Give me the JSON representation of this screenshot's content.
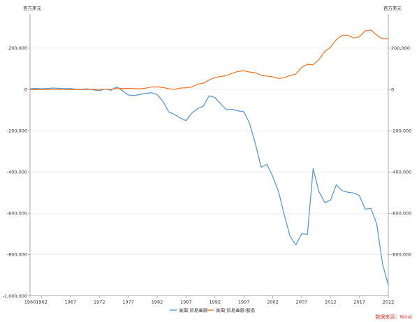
{
  "chart_data": {
    "type": "line",
    "unit_left": "百万美元",
    "unit_right": "百万美元",
    "source": "数据来源：Wind",
    "source_color": "#e8382e",
    "ylim": [
      -1000000,
      330000
    ],
    "y_ticks": [
      "-1,000,000",
      "-800,000",
      "-600,000",
      "-400,000",
      "-200,000",
      "0",
      "200,000"
    ],
    "y_tick_values": [
      -1000000,
      -800000,
      -600000,
      -400000,
      -200000,
      0,
      200000
    ],
    "y_ticks_right": [
      "-800,000",
      "-600,000",
      "-400,000",
      "-200,000",
      "0",
      "200,000"
    ],
    "y_tick_values_right": [
      -800000,
      -600000,
      -400000,
      -200000,
      0,
      200000
    ],
    "xlim": [
      1960,
      2022
    ],
    "x_ticks": [
      "1960",
      "1962",
      "1967",
      "1972",
      "1977",
      "1982",
      "1987",
      "1992",
      "1997",
      "2002",
      "2007",
      "2012",
      "2017",
      "2022"
    ],
    "x_tick_values": [
      1960,
      1962,
      1967,
      1972,
      1977,
      1982,
      1987,
      1992,
      1997,
      2002,
      2007,
      2012,
      2017,
      2022
    ],
    "legend_position": "bottom-center",
    "grid": true,
    "x": [
      1960,
      1961,
      1962,
      1963,
      1964,
      1965,
      1966,
      1967,
      1968,
      1969,
      1970,
      1971,
      1972,
      1973,
      1974,
      1975,
      1976,
      1977,
      1978,
      1979,
      1980,
      1981,
      1982,
      1983,
      1984,
      1985,
      1986,
      1987,
      1988,
      1989,
      1990,
      1991,
      1992,
      1993,
      1994,
      1995,
      1996,
      1997,
      1998,
      1999,
      2000,
      2001,
      2002,
      2003,
      2004,
      2005,
      2006,
      2007,
      2008,
      2009,
      2010,
      2011,
      2012,
      2013,
      2014,
      2015,
      2016,
      2017,
      2018,
      2019,
      2020,
      2021,
      2022
    ],
    "series": [
      {
        "name": "美国:贸易差额",
        "color": "#5b9bd5",
        "values": [
          3500,
          4500,
          3000,
          4500,
          6800,
          5000,
          3800,
          4000,
          600,
          1300,
          2600,
          -2300,
          -6400,
          1900,
          -4300,
          12400,
          -6100,
          -27200,
          -29800,
          -24600,
          -19400,
          -16200,
          -24200,
          -57800,
          -109100,
          -121900,
          -138500,
          -151700,
          -114600,
          -93100,
          -80900,
          -31100,
          -39200,
          -70500,
          -98500,
          -96400,
          -104100,
          -108300,
          -164900,
          -263200,
          -377600,
          -362800,
          -421200,
          -494900,
          -607700,
          -711600,
          -753300,
          -699100,
          -702300,
          -383800,
          -494700,
          -548600,
          -536800,
          -461900,
          -490300,
          -498500,
          -502000,
          -513800,
          -579900,
          -576300,
          -653000,
          -845000,
          -948000
        ]
      },
      {
        "name": "美国:贸易差额:服务",
        "color": "#ed7d31",
        "values": [
          -1000,
          -800,
          -700,
          -200,
          -400,
          300,
          -200,
          -1000,
          -500,
          -900,
          -300,
          1000,
          1000,
          900,
          1300,
          4200,
          4400,
          4600,
          4100,
          3000,
          6100,
          11900,
          12300,
          9300,
          3400,
          300,
          6500,
          7900,
          11600,
          25800,
          29700,
          45800,
          57700,
          62100,
          67300,
          77800,
          86900,
          90200,
          83800,
          80900,
          68400,
          64200,
          61000,
          52700,
          56200,
          67600,
          74600,
          107000,
          121400,
          119600,
          145000,
          183700,
          204400,
          240500,
          261300,
          263100,
          249100,
          255200,
          283600,
          287800,
          263000,
          245000,
          245000
        ]
      }
    ]
  }
}
